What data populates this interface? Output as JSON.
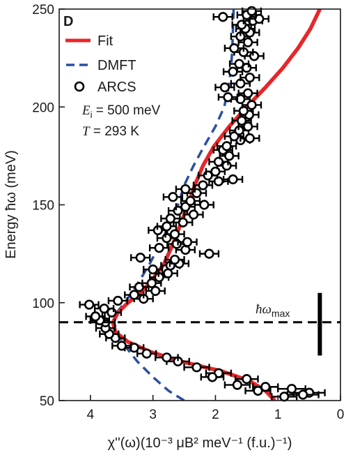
{
  "chart_data": {
    "type": "scatter",
    "panel_label": "D",
    "title": "",
    "xlabel": "χ''(ω)(10⁻³ μB² meV⁻¹ (f.u.)⁻¹)",
    "ylabel": "Energy ħω  (meV)",
    "xlim": [
      4.5,
      0
    ],
    "ylim": [
      50,
      250
    ],
    "x_reversed": true,
    "xticks": [
      4,
      3,
      2,
      1,
      0
    ],
    "yticks": [
      50,
      100,
      150,
      200,
      250
    ],
    "grid": false,
    "legend_position": "top-left",
    "annotations": {
      "ei_symbol": "E",
      "ei_sub": "i",
      "ei_value": " = 500 meV",
      "t_symbol": "T",
      "t_value": " = 293 K",
      "hw_max_symbol": "ħω",
      "hw_max_sub": "max"
    },
    "hw_max": {
      "energy": 90,
      "bar_x": 0.33,
      "bar_range": [
        73,
        105
      ]
    },
    "series": [
      {
        "name": "Fit",
        "kind": "line",
        "color": "#e8262a",
        "points": [
          [
            1.05,
            50
          ],
          [
            1.2,
            55
          ],
          [
            1.45,
            60
          ],
          [
            1.9,
            65
          ],
          [
            2.55,
            70
          ],
          [
            3.05,
            75
          ],
          [
            3.4,
            80
          ],
          [
            3.6,
            85
          ],
          [
            3.64,
            90
          ],
          [
            3.56,
            95
          ],
          [
            3.4,
            100
          ],
          [
            3.2,
            105
          ],
          [
            3.0,
            112
          ],
          [
            2.82,
            120
          ],
          [
            2.68,
            130
          ],
          [
            2.56,
            140
          ],
          [
            2.44,
            150
          ],
          [
            2.33,
            160
          ],
          [
            2.2,
            170
          ],
          [
            2.02,
            180
          ],
          [
            1.78,
            190
          ],
          [
            1.5,
            200
          ],
          [
            1.2,
            210
          ],
          [
            0.92,
            220
          ],
          [
            0.68,
            230
          ],
          [
            0.48,
            240
          ],
          [
            0.33,
            250
          ]
        ]
      },
      {
        "name": "DMFT",
        "kind": "dashed-line",
        "color": "#2b4fa0",
        "points": [
          [
            2.5,
            50
          ],
          [
            2.75,
            55
          ],
          [
            3.0,
            62
          ],
          [
            3.25,
            70
          ],
          [
            3.45,
            78
          ],
          [
            3.58,
            85
          ],
          [
            3.62,
            90
          ],
          [
            3.58,
            95
          ],
          [
            3.45,
            100
          ],
          [
            3.32,
            106
          ],
          [
            3.2,
            112
          ],
          [
            3.05,
            120
          ],
          [
            2.85,
            132
          ],
          [
            2.7,
            142
          ],
          [
            2.6,
            150
          ],
          [
            2.5,
            160
          ],
          [
            2.35,
            170
          ],
          [
            2.18,
            180
          ],
          [
            2.0,
            190
          ],
          [
            1.86,
            200
          ],
          [
            1.79,
            210
          ],
          [
            1.75,
            220
          ],
          [
            1.73,
            230
          ],
          [
            1.72,
            240
          ],
          [
            1.71,
            250
          ]
        ]
      },
      {
        "name": "ARCS",
        "kind": "points-with-xerr",
        "color": "#000000",
        "points": [
          [
            0.5,
            54,
            0.25
          ],
          [
            0.6,
            53,
            0.25
          ],
          [
            0.78,
            56,
            0.22
          ],
          [
            0.9,
            52,
            0.2
          ],
          [
            1.2,
            57,
            0.2
          ],
          [
            1.32,
            55,
            0.2
          ],
          [
            1.5,
            61,
            0.18
          ],
          [
            1.65,
            58,
            0.2
          ],
          [
            1.95,
            64,
            0.2
          ],
          [
            2.05,
            62,
            0.18
          ],
          [
            2.3,
            67,
            0.2
          ],
          [
            2.6,
            70,
            0.18
          ],
          [
            2.78,
            72,
            0.18
          ],
          [
            3.1,
            74,
            0.15
          ],
          [
            3.3,
            77,
            0.15
          ],
          [
            3.5,
            78,
            0.15
          ],
          [
            3.6,
            82,
            0.15
          ],
          [
            3.7,
            84,
            0.15
          ],
          [
            3.76,
            87,
            0.15
          ],
          [
            3.76,
            90,
            0.15
          ],
          [
            3.85,
            91,
            0.15
          ],
          [
            3.92,
            93,
            0.15
          ],
          [
            3.66,
            95,
            0.15
          ],
          [
            3.78,
            97,
            0.15
          ],
          [
            4.02,
            99,
            0.15
          ],
          [
            3.56,
            101,
            0.15
          ],
          [
            3.15,
            102,
            0.15
          ],
          [
            3.3,
            104,
            0.15
          ],
          [
            2.96,
            106,
            0.15
          ],
          [
            3.22,
            108,
            0.15
          ],
          [
            3.02,
            110,
            0.15
          ],
          [
            2.9,
            113,
            0.15
          ],
          [
            2.76,
            115,
            0.15
          ],
          [
            3.0,
            117,
            0.15
          ],
          [
            2.72,
            119,
            0.15
          ],
          [
            2.58,
            120,
            0.15
          ],
          [
            2.65,
            122,
            0.15
          ],
          [
            3.2,
            123,
            0.15
          ],
          [
            2.1,
            125,
            0.15
          ],
          [
            2.48,
            127,
            0.15
          ],
          [
            2.9,
            128,
            0.15
          ],
          [
            2.62,
            130,
            0.15
          ],
          [
            2.45,
            131,
            0.15
          ],
          [
            2.78,
            133,
            0.15
          ],
          [
            2.65,
            135,
            0.15
          ],
          [
            2.92,
            137,
            0.15
          ],
          [
            2.78,
            139,
            0.15
          ],
          [
            2.52,
            141,
            0.15
          ],
          [
            2.72,
            143,
            0.15
          ],
          [
            2.35,
            145,
            0.15
          ],
          [
            2.6,
            147,
            0.15
          ],
          [
            2.48,
            149,
            0.15
          ],
          [
            2.18,
            150,
            0.15
          ],
          [
            2.4,
            152,
            0.15
          ],
          [
            2.68,
            154,
            0.15
          ],
          [
            2.3,
            156,
            0.15
          ],
          [
            2.48,
            158,
            0.15
          ],
          [
            2.2,
            160,
            0.15
          ],
          [
            1.95,
            162,
            0.15
          ],
          [
            2.12,
            165,
            0.15
          ],
          [
            1.72,
            163,
            0.15
          ],
          [
            2.0,
            167,
            0.15
          ],
          [
            1.82,
            170,
            0.15
          ],
          [
            1.95,
            172,
            0.15
          ],
          [
            1.78,
            175,
            0.15
          ],
          [
            1.88,
            178,
            0.15
          ],
          [
            1.82,
            180,
            0.15
          ],
          [
            1.6,
            183,
            0.15
          ],
          [
            1.7,
            185,
            0.15
          ],
          [
            1.45,
            184,
            0.15
          ],
          [
            1.62,
            188,
            0.15
          ],
          [
            1.48,
            190,
            0.15
          ],
          [
            1.58,
            193,
            0.15
          ],
          [
            1.46,
            196,
            0.15
          ],
          [
            1.55,
            198,
            0.15
          ],
          [
            1.42,
            201,
            0.15
          ],
          [
            1.6,
            204,
            0.15
          ],
          [
            1.8,
            205,
            0.15
          ],
          [
            1.48,
            207,
            0.15
          ],
          [
            1.85,
            210,
            0.15
          ],
          [
            1.6,
            212,
            0.15
          ],
          [
            1.45,
            215,
            0.15
          ],
          [
            1.72,
            218,
            0.15
          ],
          [
            1.5,
            220,
            0.15
          ],
          [
            1.62,
            222,
            0.15
          ],
          [
            1.38,
            226,
            0.15
          ],
          [
            1.55,
            228,
            0.15
          ],
          [
            1.7,
            230,
            0.15
          ],
          [
            1.48,
            233,
            0.15
          ],
          [
            1.6,
            236,
            0.15
          ],
          [
            1.45,
            238,
            0.15
          ],
          [
            1.52,
            240,
            0.15
          ],
          [
            1.58,
            242,
            0.15
          ],
          [
            1.4,
            244,
            0.15
          ],
          [
            1.3,
            245,
            0.15
          ],
          [
            1.88,
            246,
            0.15
          ],
          [
            1.5,
            247,
            0.15
          ],
          [
            1.42,
            249,
            0.15
          ]
        ]
      }
    ]
  }
}
